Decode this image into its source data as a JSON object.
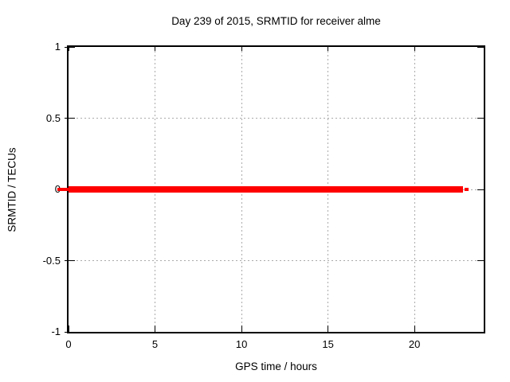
{
  "window": {
    "background": "#ffffff",
    "text_color": "#000000"
  },
  "chart_data": {
    "type": "line",
    "title": "Day 239 of 2015, SRMTID for receiver alme",
    "xlabel": "GPS time / hours",
    "ylabel": "SRMTID / TECUs",
    "xlim": [
      0,
      24
    ],
    "ylim": [
      -1,
      1
    ],
    "xticks": {
      "values": [
        0,
        5,
        10,
        15,
        20
      ],
      "labels": [
        "0",
        "5",
        "10",
        "15",
        "20"
      ]
    },
    "yticks": {
      "values": [
        1,
        0.5,
        0,
        -0.5,
        -1
      ],
      "labels": [
        "1",
        "0.5",
        "0",
        "-0.5",
        "-1"
      ]
    },
    "grid": "dotted",
    "grid_color": "#aaaaaa",
    "border_color": "#000000",
    "legend": "none",
    "series": [
      {
        "name": "SRMTID",
        "color": "#ff0000",
        "style": "thick-horizontal-line",
        "x": [
          0,
          22.8
        ],
        "y": [
          0,
          0
        ],
        "description": "SRMTID constant at 0 TECUs from 0 to ~22.8 GPS hours"
      }
    ]
  }
}
